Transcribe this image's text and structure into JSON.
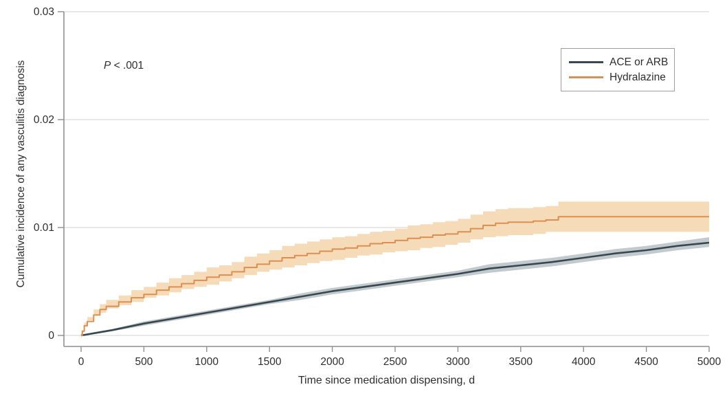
{
  "annotation": {
    "p_symbol": "P",
    "p_rest": " < .001"
  },
  "chart_data": {
    "type": "line",
    "subtype": "cumulative-incidence-step-curves-with-confidence-bands",
    "title": "",
    "xlabel": "Time since medication dispensing, d",
    "ylabel": "Cumulative incidence of any vasculitis diagnosis",
    "xlim": [
      0,
      5000
    ],
    "ylim": [
      0,
      0.03
    ],
    "x_ticks": {
      "values": [
        0,
        500,
        1000,
        1500,
        2000,
        2500,
        3000,
        3500,
        4000,
        4500,
        5000
      ],
      "labels": [
        "0",
        "500",
        "1000",
        "1500",
        "2000",
        "2500",
        "3000",
        "3500",
        "4000",
        "4500",
        "5000"
      ]
    },
    "y_ticks": {
      "values": [
        0,
        0.01,
        0.02,
        0.03
      ],
      "labels": [
        "0",
        "0.01",
        "0.02",
        "0.03"
      ]
    },
    "grid": "horizontal",
    "legend_position": "top-right",
    "annotation": "P < .001",
    "colors": {
      "axis": "#8f8f8f",
      "grid": "#d9d9d9",
      "tick_text": "#2e2e2e",
      "background": "#ffffff",
      "legend_border": "#9e9e9e"
    },
    "series": [
      {
        "name": "ACE or ARB",
        "color": "#37474f",
        "band_color": "#c3cacd",
        "step": false,
        "line_width": 2.6,
        "points_format": [
          "day",
          "cumulative_incidence",
          "ci_low",
          "ci_high"
        ],
        "points": [
          [
            0,
            0,
            0,
            0
          ],
          [
            100,
            0.0002,
            0.0001,
            0.0003
          ],
          [
            250,
            0.0005,
            0.0004,
            0.0006
          ],
          [
            500,
            0.0011,
            0.0009,
            0.0013
          ],
          [
            750,
            0.0016,
            0.0014,
            0.0018
          ],
          [
            1000,
            0.0021,
            0.0019,
            0.0023
          ],
          [
            1250,
            0.0026,
            0.0024,
            0.0028
          ],
          [
            1500,
            0.0031,
            0.0029,
            0.0033
          ],
          [
            1750,
            0.0036,
            0.0033,
            0.0039
          ],
          [
            2000,
            0.0041,
            0.0038,
            0.0044
          ],
          [
            2250,
            0.0045,
            0.0042,
            0.0048
          ],
          [
            2500,
            0.0049,
            0.0046,
            0.0052
          ],
          [
            2750,
            0.0053,
            0.005,
            0.0056
          ],
          [
            3000,
            0.0057,
            0.0054,
            0.006
          ],
          [
            3250,
            0.0062,
            0.0058,
            0.0066
          ],
          [
            3500,
            0.0065,
            0.0061,
            0.0069
          ],
          [
            3750,
            0.0068,
            0.0064,
            0.0072
          ],
          [
            4000,
            0.0072,
            0.0068,
            0.0076
          ],
          [
            4250,
            0.0076,
            0.0072,
            0.008
          ],
          [
            4500,
            0.0079,
            0.0075,
            0.0083
          ],
          [
            4750,
            0.0083,
            0.0079,
            0.0087
          ],
          [
            5000,
            0.0086,
            0.0082,
            0.0091
          ]
        ]
      },
      {
        "name": "Hydralazine",
        "color": "#dd8f52",
        "band_color": "#f5dbb8",
        "step": true,
        "line_width": 2,
        "points_format": [
          "day",
          "cumulative_incidence",
          "ci_low",
          "ci_high"
        ],
        "points": [
          [
            0,
            0,
            0,
            0
          ],
          [
            10,
            0.0004,
            0.0002,
            0.0006
          ],
          [
            25,
            0.0009,
            0.0006,
            0.0012
          ],
          [
            50,
            0.0013,
            0.0009,
            0.0017
          ],
          [
            100,
            0.0019,
            0.0014,
            0.0024
          ],
          [
            150,
            0.0024,
            0.0019,
            0.0029
          ],
          [
            200,
            0.0027,
            0.0021,
            0.0033
          ],
          [
            300,
            0.0031,
            0.0025,
            0.0037
          ],
          [
            400,
            0.0035,
            0.0028,
            0.0042
          ],
          [
            500,
            0.0038,
            0.0031,
            0.0045
          ],
          [
            600,
            0.0042,
            0.0035,
            0.0049
          ],
          [
            700,
            0.0045,
            0.0037,
            0.0053
          ],
          [
            800,
            0.0048,
            0.004,
            0.0056
          ],
          [
            900,
            0.0051,
            0.0043,
            0.0059
          ],
          [
            1000,
            0.0054,
            0.0045,
            0.0063
          ],
          [
            1100,
            0.0056,
            0.0047,
            0.0065
          ],
          [
            1200,
            0.0059,
            0.005,
            0.0068
          ],
          [
            1300,
            0.0063,
            0.0053,
            0.0073
          ],
          [
            1400,
            0.0066,
            0.0056,
            0.0076
          ],
          [
            1500,
            0.0069,
            0.0059,
            0.0079
          ],
          [
            1600,
            0.0072,
            0.0061,
            0.0083
          ],
          [
            1700,
            0.0074,
            0.0063,
            0.0085
          ],
          [
            1800,
            0.0076,
            0.0065,
            0.0087
          ],
          [
            1900,
            0.0078,
            0.0067,
            0.0089
          ],
          [
            2000,
            0.008,
            0.0069,
            0.0091
          ],
          [
            2100,
            0.0081,
            0.007,
            0.0092
          ],
          [
            2200,
            0.0083,
            0.0072,
            0.0094
          ],
          [
            2300,
            0.0085,
            0.0074,
            0.0096
          ],
          [
            2400,
            0.0086,
            0.0075,
            0.0097
          ],
          [
            2500,
            0.0088,
            0.0077,
            0.0099
          ],
          [
            2600,
            0.009,
            0.0078,
            0.0102
          ],
          [
            2700,
            0.0091,
            0.0079,
            0.0103
          ],
          [
            2800,
            0.0093,
            0.0081,
            0.0105
          ],
          [
            2900,
            0.0094,
            0.0082,
            0.0106
          ],
          [
            3000,
            0.0096,
            0.0084,
            0.0108
          ],
          [
            3100,
            0.0099,
            0.0086,
            0.0112
          ],
          [
            3200,
            0.0102,
            0.0089,
            0.0115
          ],
          [
            3300,
            0.0104,
            0.0091,
            0.0117
          ],
          [
            3400,
            0.0105,
            0.0092,
            0.0118
          ],
          [
            3600,
            0.0106,
            0.0093,
            0.0119
          ],
          [
            3700,
            0.0107,
            0.0094,
            0.012
          ],
          [
            3800,
            0.011,
            0.0096,
            0.0124
          ],
          [
            5000,
            0.011,
            0.0096,
            0.0124
          ]
        ]
      }
    ]
  }
}
